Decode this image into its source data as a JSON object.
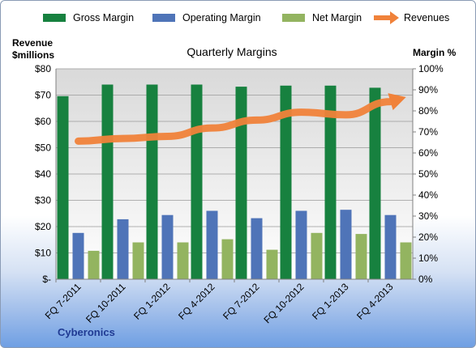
{
  "chart_data": {
    "type": "bar",
    "title": "Quarterly Margins",
    "categories": [
      "FQ 7-2011",
      "FQ 10-2011",
      "FQ 1-2012",
      "FQ 4-2012",
      "FQ 7-2012",
      "FQ 10-2012",
      "FQ 1-2013",
      "FQ 4-2013"
    ],
    "series": [
      {
        "name": "Gross Margin",
        "axis": "right",
        "chart": "bar",
        "color": "#17813f",
        "values": [
          87,
          92.5,
          92.5,
          92.5,
          91.5,
          92,
          92,
          91
        ]
      },
      {
        "name": "Operating Margin",
        "axis": "right",
        "chart": "bar",
        "color": "#4f74b8",
        "values": [
          22,
          28.5,
          30.5,
          32.5,
          29,
          32.5,
          33,
          30.5
        ]
      },
      {
        "name": "Net Margin",
        "axis": "right",
        "chart": "bar",
        "color": "#93b460",
        "values": [
          13.5,
          17.5,
          17.5,
          19,
          14,
          22,
          21.5,
          17.5
        ]
      },
      {
        "name": "Revenues",
        "axis": "left",
        "chart": "line",
        "color": "#f0823a",
        "values": [
          52.5,
          53.5,
          54.3,
          57.5,
          60.5,
          63.5,
          62.5,
          67.5
        ]
      }
    ],
    "ylabel_left": "Revenue $millions",
    "ylabel_right": "Margin %",
    "left_ticks": [
      "$-",
      "$10",
      "$20",
      "$30",
      "$40",
      "$50",
      "$60",
      "$70",
      "$80"
    ],
    "right_ticks": [
      "0%",
      "10%",
      "20%",
      "30%",
      "40%",
      "50%",
      "60%",
      "70%",
      "80%",
      "90%",
      "100%"
    ],
    "ylim_left": [
      0,
      80
    ],
    "ylim_right": [
      0,
      100
    ],
    "legend_position": "top",
    "grid": true,
    "footer": "Cyberonics"
  }
}
